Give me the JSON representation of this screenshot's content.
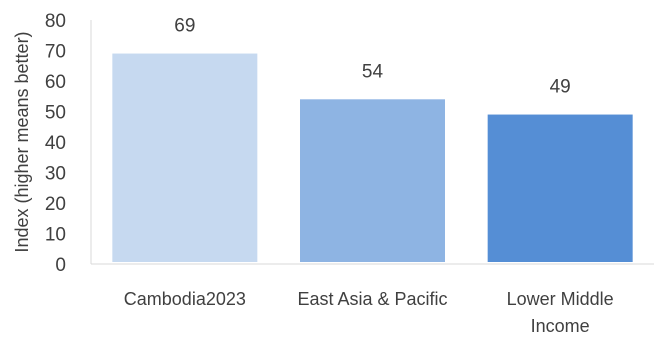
{
  "chart_data": {
    "type": "bar",
    "title": "",
    "xlabel": "",
    "ylabel": "Index (higher means better)",
    "categories": [
      [
        "Cambodia2023"
      ],
      [
        "East Asia & Pacific"
      ],
      [
        "Lower Middle",
        "Income"
      ]
    ],
    "values": [
      69,
      54,
      49
    ],
    "data_labels": [
      "69",
      "54",
      "49"
    ],
    "ylim": [
      0,
      80
    ],
    "yticks": [
      0,
      10,
      20,
      30,
      40,
      50,
      60,
      70,
      80
    ],
    "colors": [
      "#c6d9f0",
      "#8eb4e3",
      "#558ed5"
    ],
    "axis_color": "#d9d9d9",
    "grid": false,
    "legend": "none"
  }
}
